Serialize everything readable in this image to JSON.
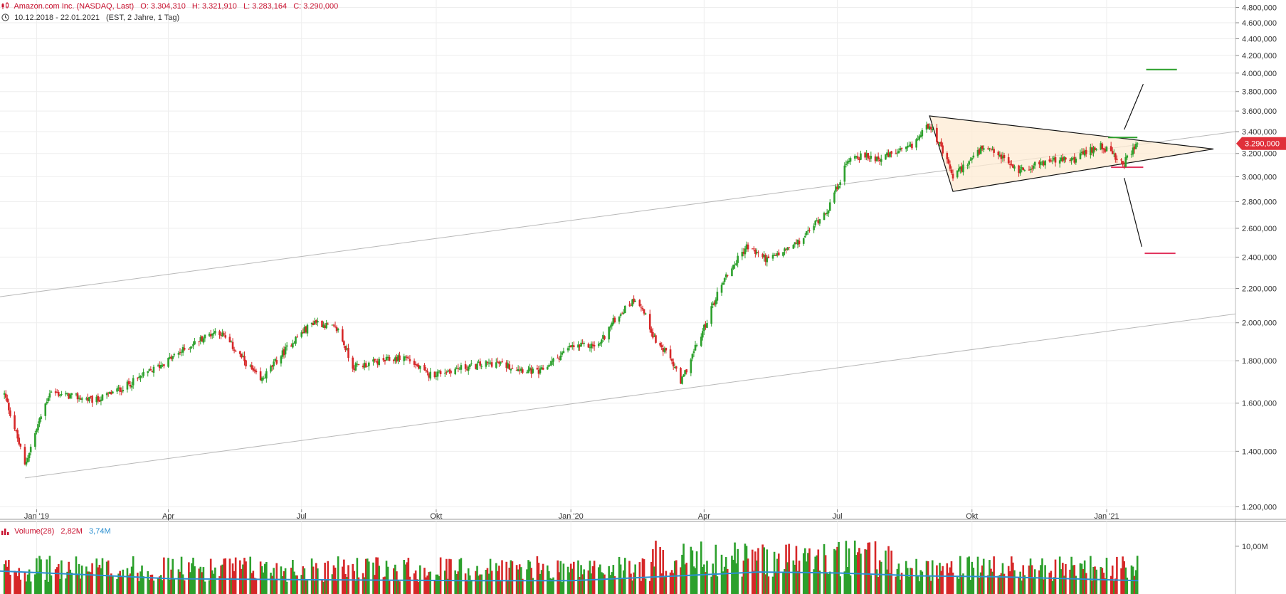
{
  "header": {
    "instrument": "Amazon.com Inc. (NASDAQ, Last)",
    "open": "O: 3.304,310",
    "high": "H: 3.321,910",
    "low": "L: 3.283,164",
    "close": "C: 3.290,000",
    "range": "10.12.2018 - 22.01.2021",
    "settings": "(EST, 2 Jahre, 1 Tag)"
  },
  "price_badge": "3.290,000",
  "volume_panel": {
    "label": "Volume(28)",
    "value1": "2,82M",
    "value2": "3,74M",
    "tick": "10,00M"
  },
  "colors": {
    "up": "#2ca02c",
    "down": "#d62728",
    "ma": "#2a8fd0",
    "badge": "#e0303a",
    "triangle_fill": "#fdebd3",
    "target_up": "#2ca02c",
    "target_down": "#e0305a"
  },
  "chart_data": {
    "type": "candlestick",
    "title": "Amazon.com Inc. (NASDAQ, Last)",
    "y_scale": "log",
    "ylim": [
      1200,
      4800
    ],
    "y_ticks": [
      1200,
      1400,
      1600,
      1800,
      2000,
      2200,
      2400,
      2600,
      2800,
      3000,
      3200,
      3400,
      3600,
      3800,
      4000,
      4200,
      4400,
      4600,
      4800
    ],
    "y_tick_labels": [
      "1.200,000",
      "1.400,000",
      "1.600,000",
      "1.800,000",
      "2.000,000",
      "2.200,000",
      "2.400,000",
      "2.600,000",
      "2.800,000",
      "3.000,000",
      "3.200,000",
      "3.400,000",
      "3.600,000",
      "3.800,000",
      "4.000,000",
      "4.200,000",
      "4.400,000",
      "4.600,000",
      "4.800,000"
    ],
    "x_start": "2018-12-10",
    "x_end": "2021-01-22",
    "x_ticks": [
      {
        "date": "2019-01-01",
        "label": "Jan '19"
      },
      {
        "date": "2019-04-01",
        "label": "Apr"
      },
      {
        "date": "2019-07-01",
        "label": "Jul"
      },
      {
        "date": "2019-10-01",
        "label": "Okt"
      },
      {
        "date": "2020-01-01",
        "label": "Jan '20"
      },
      {
        "date": "2020-04-01",
        "label": "Apr"
      },
      {
        "date": "2020-07-01",
        "label": "Jul"
      },
      {
        "date": "2020-10-01",
        "label": "Okt"
      },
      {
        "date": "2021-01-01",
        "label": "Jan '21"
      }
    ],
    "price_anchors": [
      [
        "2018-12-10",
        1640
      ],
      [
        "2018-12-24",
        1345
      ],
      [
        "2019-01-10",
        1650
      ],
      [
        "2019-02-10",
        1610
      ],
      [
        "2019-03-01",
        1670
      ],
      [
        "2019-03-25",
        1770
      ],
      [
        "2019-04-25",
        1920
      ],
      [
        "2019-05-05",
        1960
      ],
      [
        "2019-06-03",
        1700
      ],
      [
        "2019-06-25",
        1900
      ],
      [
        "2019-07-10",
        2010
      ],
      [
        "2019-07-26",
        1960
      ],
      [
        "2019-08-05",
        1770
      ],
      [
        "2019-09-10",
        1820
      ],
      [
        "2019-09-25",
        1730
      ],
      [
        "2019-10-15",
        1760
      ],
      [
        "2019-11-10",
        1790
      ],
      [
        "2019-12-10",
        1740
      ],
      [
        "2020-01-01",
        1870
      ],
      [
        "2020-01-20",
        1880
      ],
      [
        "2020-01-31",
        2020
      ],
      [
        "2020-02-15",
        2150
      ],
      [
        "2020-02-28",
        1900
      ],
      [
        "2020-03-10",
        1800
      ],
      [
        "2020-03-16",
        1690
      ],
      [
        "2020-03-31",
        1950
      ],
      [
        "2020-04-14",
        2250
      ],
      [
        "2020-04-30",
        2470
      ],
      [
        "2020-05-15",
        2380
      ],
      [
        "2020-06-05",
        2500
      ],
      [
        "2020-06-25",
        2750
      ],
      [
        "2020-07-10",
        3180
      ],
      [
        "2020-07-31",
        3160
      ],
      [
        "2020-08-20",
        3250
      ],
      [
        "2020-09-02",
        3480
      ],
      [
        "2020-09-18",
        3000
      ],
      [
        "2020-10-08",
        3240
      ],
      [
        "2020-10-20",
        3180
      ],
      [
        "2020-11-01",
        3050
      ],
      [
        "2020-11-20",
        3130
      ],
      [
        "2020-12-10",
        3150
      ],
      [
        "2020-12-28",
        3280
      ],
      [
        "2021-01-12",
        3100
      ],
      [
        "2021-01-22",
        3290
      ]
    ],
    "volume": {
      "label": "Volume(28)",
      "ylim": [
        0,
        14000000
      ],
      "tick": 10000000,
      "ma": [
        [
          2018,
          4.8
        ],
        [
          2019.1,
          4.0
        ],
        [
          2019.25,
          3.2
        ],
        [
          2019.5,
          3.0
        ],
        [
          2019.8,
          2.8
        ],
        [
          2020.0,
          2.8
        ],
        [
          2020.2,
          3.8
        ],
        [
          2020.35,
          4.6
        ],
        [
          2020.5,
          4.4
        ],
        [
          2020.65,
          3.8
        ],
        [
          2020.8,
          3.6
        ],
        [
          2021.06,
          2.8
        ]
      ]
    },
    "annotations": {
      "triangle": [
        [
          "2020-09-02",
          3552
        ],
        [
          "2020-09-18",
          2880
        ],
        [
          "2021-03-15",
          3240
        ]
      ],
      "channel_upper": [
        [
          "2018-11-20",
          2130
        ],
        [
          "2021-03-30",
          3400
        ]
      ],
      "channel_lower": [
        [
          "2018-12-24",
          1300
        ],
        [
          "2021-03-30",
          2050
        ]
      ],
      "resistance": [
        [
          "2021-01-02",
          3345
        ],
        [
          "2021-01-22",
          3345
        ]
      ],
      "support": [
        [
          "2021-01-04",
          3080
        ],
        [
          "2021-01-26",
          3080
        ]
      ],
      "target_up": [
        [
          "2021-01-28",
          4040
        ],
        [
          "2021-02-18",
          4040
        ]
      ],
      "target_down": [
        [
          "2021-01-27",
          2425
        ],
        [
          "2021-02-17",
          2425
        ]
      ],
      "breakout_up": [
        [
          "2021-01-13",
          3420
        ],
        [
          "2021-01-26",
          3880
        ]
      ],
      "breakdown": [
        [
          "2021-01-13",
          2990
        ],
        [
          "2021-01-25",
          2470
        ]
      ]
    }
  }
}
